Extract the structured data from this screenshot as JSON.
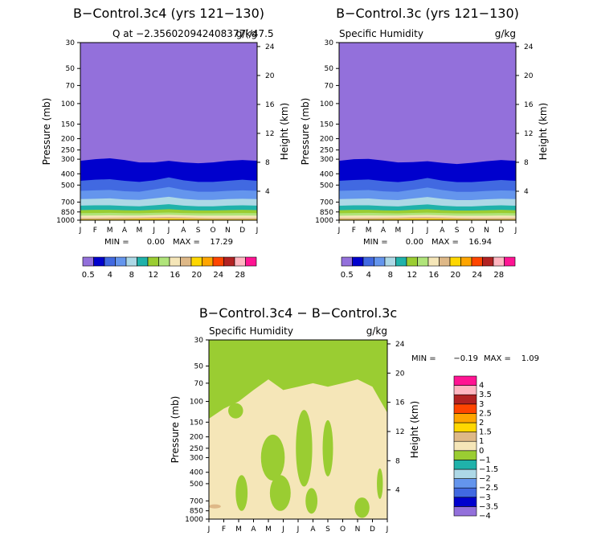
{
  "palette": [
    "#9370DB",
    "#0000CD",
    "#4169E1",
    "#6495ED",
    "#ADD8E6",
    "#20B2AA",
    "#9ACD32",
    "#B0E47A",
    "#F5E6B8",
    "#DEB887",
    "#FFD700",
    "#FFA500",
    "#FF4500",
    "#B22222",
    "#FFB6C1",
    "#FF1493"
  ],
  "months": [
    "J",
    "F",
    "M",
    "A",
    "M",
    "J",
    "J",
    "A",
    "S",
    "O",
    "N",
    "D",
    "J"
  ],
  "pressure_ticks": [
    "30",
    "50",
    "70",
    "100",
    "150",
    "200",
    "250",
    "300",
    "400",
    "500",
    "700",
    "850",
    "1000"
  ],
  "pressure_values": [
    30,
    50,
    70,
    100,
    150,
    200,
    250,
    300,
    400,
    500,
    700,
    850,
    1000
  ],
  "axis_labels": {
    "pressure": "Pressure (mb)",
    "height": "Height (km)"
  },
  "chart_data": [
    {
      "id": "panel1",
      "type": "filled-contour",
      "title": "B−Control.3c4 (yrs 121−130)",
      "subtitle_left": "Q at −2.356020942408377(/47.5",
      "subtitle_right": "g/kg",
      "xlabel_ticks": [
        "J",
        "F",
        "M",
        "A",
        "M",
        "J",
        "J",
        "A",
        "S",
        "O",
        "N",
        "D",
        "J"
      ],
      "ylabel": "Pressure (mb)",
      "y2label": "Height (km)",
      "height_ticks": [
        4,
        8,
        12,
        16,
        20,
        24
      ],
      "stats": {
        "min_label": "MIN =",
        "min": "0.00",
        "max_label": "MAX =",
        "max": "17.29"
      },
      "levels_hPa": [
        {
          "level": 0.5,
          "pressure": [
            310,
            300,
            295,
            305,
            320,
            320,
            310,
            320,
            325,
            320,
            310,
            305,
            310
          ]
        },
        {
          "level": 1,
          "pressure": [
            460,
            450,
            445,
            460,
            470,
            455,
            430,
            455,
            470,
            470,
            460,
            450,
            460
          ]
        },
        {
          "level": 2,
          "pressure": [
            560,
            555,
            550,
            565,
            570,
            545,
            520,
            550,
            570,
            570,
            560,
            555,
            560
          ]
        },
        {
          "level": 3,
          "pressure": [
            660,
            655,
            650,
            665,
            670,
            650,
            630,
            655,
            670,
            670,
            660,
            655,
            660
          ]
        },
        {
          "level": 4,
          "pressure": [
            750,
            745,
            745,
            755,
            760,
            745,
            730,
            750,
            760,
            760,
            750,
            745,
            750
          ]
        },
        {
          "level": 6,
          "pressure": [
            820,
            815,
            815,
            822,
            825,
            815,
            805,
            818,
            825,
            825,
            820,
            815,
            820
          ]
        },
        {
          "level": 8,
          "pressure": [
            870,
            868,
            866,
            870,
            872,
            866,
            860,
            868,
            872,
            872,
            870,
            868,
            870
          ]
        },
        {
          "level": 10,
          "pressure": [
            915,
            912,
            910,
            912,
            912,
            905,
            900,
            908,
            915,
            915,
            915,
            912,
            915
          ]
        },
        {
          "level": 12,
          "pressure": [
            955,
            955,
            952,
            950,
            948,
            942,
            938,
            945,
            952,
            955,
            955,
            955,
            955
          ]
        },
        {
          "level": 14,
          "pressure": [
            985,
            985,
            983,
            980,
            975,
            970,
            968,
            972,
            978,
            983,
            985,
            985,
            985
          ]
        }
      ]
    },
    {
      "id": "panel2",
      "type": "filled-contour",
      "title": "B−Control.3c (yrs 121−130)",
      "subtitle_left": "Specific Humidity",
      "subtitle_right": "g/kg",
      "xlabel_ticks": [
        "J",
        "F",
        "M",
        "A",
        "M",
        "J",
        "J",
        "A",
        "S",
        "O",
        "N",
        "D",
        "J"
      ],
      "ylabel": "Pressure (mb)",
      "y2label": "Height (km)",
      "height_ticks": [
        4,
        8,
        12,
        16,
        20,
        24
      ],
      "stats": {
        "min_label": "MIN =",
        "min": "0.00",
        "max_label": "MAX =",
        "max": "16.94"
      },
      "levels_hPa": [
        {
          "level": 0.5,
          "pressure": [
            310,
            300,
            298,
            308,
            320,
            318,
            312,
            322,
            330,
            322,
            312,
            305,
            310
          ]
        },
        {
          "level": 1,
          "pressure": [
            460,
            452,
            448,
            462,
            472,
            458,
            435,
            458,
            472,
            472,
            462,
            452,
            460
          ]
        },
        {
          "level": 2,
          "pressure": [
            560,
            556,
            552,
            566,
            572,
            548,
            525,
            552,
            572,
            572,
            562,
            556,
            560
          ]
        },
        {
          "level": 3,
          "pressure": [
            660,
            656,
            652,
            666,
            672,
            652,
            632,
            656,
            672,
            672,
            662,
            656,
            660
          ]
        },
        {
          "level": 4,
          "pressure": [
            752,
            746,
            746,
            756,
            762,
            746,
            732,
            752,
            762,
            762,
            752,
            746,
            752
          ]
        },
        {
          "level": 6,
          "pressure": [
            822,
            816,
            816,
            824,
            826,
            816,
            806,
            820,
            826,
            826,
            822,
            816,
            822
          ]
        },
        {
          "level": 8,
          "pressure": [
            872,
            868,
            866,
            871,
            873,
            867,
            861,
            869,
            873,
            873,
            872,
            868,
            872
          ]
        },
        {
          "level": 10,
          "pressure": [
            916,
            913,
            911,
            913,
            913,
            906,
            902,
            909,
            916,
            916,
            916,
            913,
            916
          ]
        },
        {
          "level": 12,
          "pressure": [
            956,
            955,
            953,
            951,
            949,
            943,
            940,
            946,
            953,
            956,
            956,
            955,
            956
          ]
        },
        {
          "level": 14,
          "pressure": [
            986,
            986,
            984,
            981,
            976,
            971,
            969,
            973,
            979,
            984,
            986,
            986,
            986
          ]
        }
      ]
    },
    {
      "id": "panel3",
      "type": "filled-contour-difference",
      "title": "B−Control.3c4 − B−Control.3c",
      "subtitle_left": "Specific Humidity",
      "subtitle_right": "g/kg",
      "xlabel_ticks": [
        "J",
        "F",
        "M",
        "A",
        "M",
        "J",
        "J",
        "A",
        "S",
        "O",
        "N",
        "D",
        "J"
      ],
      "ylabel": "Pressure (mb)",
      "y2label": "Height (km)",
      "height_ticks": [
        4,
        8,
        12,
        16,
        20,
        24
      ],
      "stats": {
        "min_label": "MIN =",
        "min": "−0.19",
        "max_label": "MAX =",
        "max": "1.09"
      },
      "background_value_range": "0 to 1",
      "top_region": {
        "value_range": "−1 to 0",
        "lower_boundary_hPa": [
          140,
          115,
          100,
          80,
          65,
          80,
          75,
          70,
          75,
          70,
          65,
          75,
          125
        ]
      },
      "patches": [
        {
          "value_range": "−1 to 0",
          "month": 1.8,
          "pressure": 120,
          "dmonth": 0.5,
          "dpres": 0.15
        },
        {
          "value_range": "−1 to 0",
          "month": 4.3,
          "pressure": 300,
          "dmonth": 0.8,
          "dpres": 0.45
        },
        {
          "value_range": "−1 to 0",
          "month": 6.4,
          "pressure": 250,
          "dmonth": 0.55,
          "dpres": 0.75
        },
        {
          "value_range": "−1 to 0",
          "month": 8.0,
          "pressure": 250,
          "dmonth": 0.35,
          "dpres": 0.55
        },
        {
          "value_range": "−1 to 0",
          "month": 4.8,
          "pressure": 600,
          "dmonth": 0.7,
          "dpres": 0.35
        },
        {
          "value_range": "−1 to 0",
          "month": 2.2,
          "pressure": 600,
          "dmonth": 0.4,
          "dpres": 0.35
        },
        {
          "value_range": "−1 to 0",
          "month": 6.9,
          "pressure": 700,
          "dmonth": 0.4,
          "dpres": 0.25
        },
        {
          "value_range": "−1 to 0",
          "month": 10.3,
          "pressure": 800,
          "dmonth": 0.5,
          "dpres": 0.2
        },
        {
          "value_range": "−1 to 0",
          "month": 11.5,
          "pressure": 500,
          "dmonth": 0.2,
          "dpres": 0.3
        },
        {
          "value_range": "1 to 1.5",
          "month": 0.4,
          "pressure": 780,
          "dmonth": 0.4,
          "dpres": 0.04
        }
      ]
    }
  ],
  "colorbar_horizontal": {
    "labels": [
      {
        "text": "0.5",
        "slot": 0.5
      },
      {
        "text": "4",
        "slot": 2.5
      },
      {
        "text": "8",
        "slot": 4.5
      },
      {
        "text": "12",
        "slot": 6.5
      },
      {
        "text": "16",
        "slot": 8.5
      },
      {
        "text": "20",
        "slot": 10.5
      },
      {
        "text": "24",
        "slot": 12.5
      },
      {
        "text": "28",
        "slot": 14.5
      }
    ]
  },
  "colorbar_vertical": {
    "colors": [
      "#9370DB",
      "#0000CD",
      "#4169E1",
      "#6495ED",
      "#ADD8E6",
      "#20B2AA",
      "#9ACD32",
      "#F5E6B8",
      "#DEB887",
      "#FFD700",
      "#FFA500",
      "#FF4500",
      "#B22222",
      "#FFB6C1",
      "#FF1493"
    ],
    "labels": [
      "−4",
      "−3.5",
      "−3",
      "−2.5",
      "−2",
      "−1.5",
      "−1",
      "0",
      "1",
      "1.5",
      "2",
      "2.5",
      "3",
      "3.5",
      "4"
    ]
  }
}
